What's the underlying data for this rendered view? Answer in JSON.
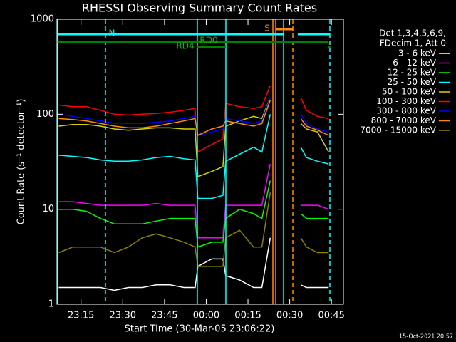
{
  "chart_data": {
    "type": "line",
    "title": "RHESSI Observing Summary Count Rates",
    "xlabel": "Start Time (30-Mar-05 23:06:22)",
    "ylabel": "Count Rate (s⁻¹ detector⁻¹)",
    "footer": "15-Oct-2021 20:57",
    "log_y": true,
    "xlim": [
      6.37,
      109.3
    ],
    "ylim": [
      1,
      1000
    ],
    "xticks": [
      {
        "value": 15,
        "label": "23:15"
      },
      {
        "value": 30,
        "label": "23:30"
      },
      {
        "value": 45,
        "label": "23:45"
      },
      {
        "value": 60,
        "label": "00:00"
      },
      {
        "value": 75,
        "label": "00:15"
      },
      {
        "value": 90,
        "label": "00:30"
      },
      {
        "value": 105,
        "label": "00:45"
      }
    ],
    "yticks": [
      1,
      10,
      100,
      1000
    ],
    "legend_header": [
      "Det 1,3,4,5,6,9,",
      "FDecim 1, Att 0"
    ],
    "annotations": [
      "N",
      "RD0",
      "RD4",
      "S"
    ],
    "x": [
      7,
      12,
      17,
      22,
      27,
      32,
      37,
      42,
      47,
      52,
      56,
      57,
      62,
      66,
      67,
      72,
      77,
      80,
      83,
      88,
      94,
      96,
      100,
      104
    ],
    "series": [
      {
        "name": "3 - 6 keV",
        "color": "#ffffff",
        "values": [
          1.5,
          1.5,
          1.5,
          1.5,
          1.4,
          1.5,
          1.5,
          1.6,
          1.6,
          1.5,
          1.5,
          2.5,
          3,
          3,
          2,
          1.8,
          1.5,
          1.5,
          5,
          null,
          1.6,
          1.5,
          1.5,
          1.5
        ]
      },
      {
        "name": "6 - 12 keV",
        "color": "#ff00ff",
        "values": [
          12,
          12,
          11.5,
          11,
          11,
          11,
          11,
          11.5,
          11,
          11,
          11,
          5,
          5,
          5,
          11,
          11,
          11,
          11,
          30,
          null,
          11,
          11,
          11,
          10
        ]
      },
      {
        "name": "12 - 25 keV",
        "color": "#00ff00",
        "values": [
          10,
          10,
          9.5,
          8,
          7,
          7,
          7,
          7.5,
          8,
          8,
          8,
          4,
          4.5,
          4.5,
          8,
          10,
          9,
          8,
          20,
          null,
          9,
          8,
          8,
          8
        ]
      },
      {
        "name": "25 - 50 keV",
        "color": "#00ffff",
        "values": [
          37,
          36,
          35,
          33,
          32,
          32,
          33,
          35,
          36,
          34,
          33,
          13,
          13,
          14,
          32,
          38,
          45,
          40,
          100,
          null,
          45,
          35,
          32,
          30
        ]
      },
      {
        "name": "50 - 100 keV",
        "color": "#d4d400",
        "values": [
          75,
          78,
          78,
          75,
          70,
          68,
          70,
          72,
          72,
          70,
          70,
          22,
          25,
          28,
          75,
          85,
          95,
          90,
          150,
          null,
          80,
          70,
          65,
          40
        ]
      },
      {
        "name": "100 - 300 keV",
        "color": "#ff0000",
        "values": [
          125,
          120,
          120,
          110,
          100,
          98,
          100,
          102,
          105,
          110,
          115,
          40,
          48,
          55,
          130,
          120,
          115,
          120,
          200,
          null,
          150,
          110,
          95,
          90
        ]
      },
      {
        "name": "300 - 800 keV",
        "color": "#0000ff",
        "values": [
          100,
          95,
          90,
          85,
          80,
          80,
          80,
          82,
          85,
          90,
          95,
          60,
          65,
          70,
          90,
          85,
          80,
          85,
          150,
          null,
          100,
          80,
          70,
          65
        ]
      },
      {
        "name": "800 - 7000 keV",
        "color": "#ff8c00",
        "values": [
          90,
          88,
          85,
          80,
          75,
          72,
          72,
          75,
          80,
          85,
          90,
          60,
          70,
          75,
          85,
          80,
          75,
          80,
          140,
          null,
          90,
          75,
          68,
          60
        ]
      },
      {
        "name": "7000 - 15000 keV",
        "color": "#8b8000",
        "values": [
          3.5,
          4,
          4,
          4,
          3.5,
          4,
          5,
          5.5,
          5,
          4.5,
          4,
          2.5,
          2.5,
          2.5,
          5,
          6,
          4,
          4,
          15,
          null,
          5,
          4,
          3.5,
          3.5
        ]
      }
    ]
  }
}
